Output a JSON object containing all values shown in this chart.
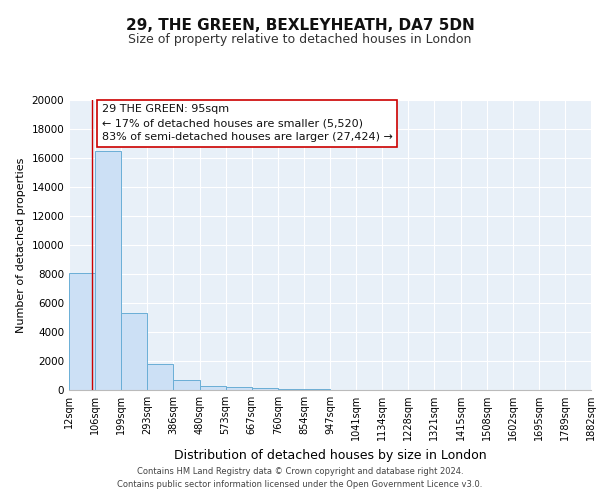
{
  "title": "29, THE GREEN, BEXLEYHEATH, DA7 5DN",
  "subtitle": "Size of property relative to detached houses in London",
  "xlabel": "Distribution of detached houses by size in London",
  "ylabel": "Number of detached properties",
  "bar_edges": [
    12,
    106,
    199,
    293,
    386,
    480,
    573,
    667,
    760,
    854,
    947,
    1041,
    1134,
    1228,
    1321,
    1415,
    1508,
    1602,
    1695,
    1789,
    1882
  ],
  "bar_heights": [
    8100,
    16500,
    5300,
    1800,
    700,
    300,
    200,
    150,
    100,
    50,
    30,
    20,
    15,
    10,
    8,
    6,
    5,
    4,
    3,
    2
  ],
  "tick_labels": [
    "12sqm",
    "106sqm",
    "199sqm",
    "293sqm",
    "386sqm",
    "480sqm",
    "573sqm",
    "667sqm",
    "760sqm",
    "854sqm",
    "947sqm",
    "1041sqm",
    "1134sqm",
    "1228sqm",
    "1321sqm",
    "1415sqm",
    "1508sqm",
    "1602sqm",
    "1695sqm",
    "1789sqm",
    "1882sqm"
  ],
  "bar_facecolor": "#cce0f5",
  "bar_edgecolor": "#6aaed6",
  "vline_x": 95,
  "vline_color": "#cc0000",
  "annotation_line1": "29 THE GREEN: 95sqm",
  "annotation_line2": "← 17% of detached houses are smaller (5,520)",
  "annotation_line3": "83% of semi-detached houses are larger (27,424) →",
  "annotation_box_facecolor": "#ffffff",
  "annotation_box_edgecolor": "#cc0000",
  "ylim": [
    0,
    20000
  ],
  "yticks": [
    0,
    2000,
    4000,
    6000,
    8000,
    10000,
    12000,
    14000,
    16000,
    18000,
    20000
  ],
  "bg_color": "#e8f0f8",
  "footer_line1": "Contains HM Land Registry data © Crown copyright and database right 2024.",
  "footer_line2": "Contains public sector information licensed under the Open Government Licence v3.0.",
  "title_fontsize": 11,
  "subtitle_fontsize": 9,
  "tick_fontsize": 7,
  "ylabel_fontsize": 8,
  "xlabel_fontsize": 9,
  "annotation_fontsize": 8,
  "footer_fontsize": 6
}
